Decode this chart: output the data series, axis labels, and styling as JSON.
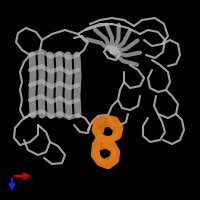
{
  "background_color": "#000000",
  "protein_color": "#b0b0b0",
  "protein_dark": "#888888",
  "highlight_color": "#e07818",
  "axis_x_color": "#cc0000",
  "axis_y_color": "#2222cc",
  "figsize": [
    2.0,
    2.0
  ],
  "dpi": 100
}
